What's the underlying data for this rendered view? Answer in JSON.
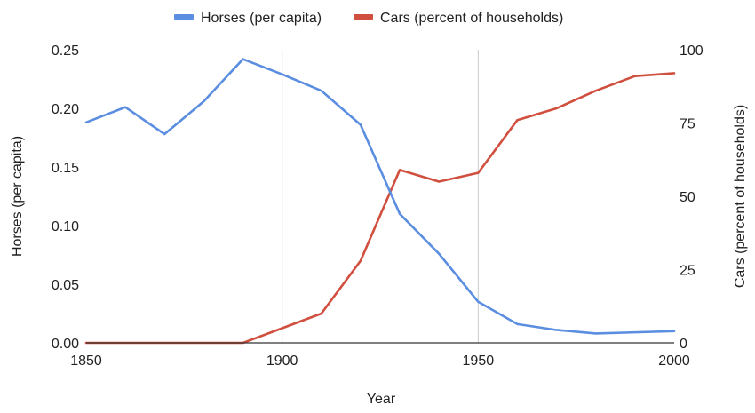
{
  "chart_data": {
    "type": "line",
    "x": [
      1850,
      1860,
      1870,
      1880,
      1890,
      1900,
      1910,
      1920,
      1930,
      1940,
      1950,
      1960,
      1970,
      1980,
      1990,
      2000
    ],
    "series": [
      {
        "name": "Horses (per capita)",
        "axis": "left",
        "color": "#5b8ee0",
        "values": [
          0.188,
          0.201,
          0.178,
          0.206,
          0.242,
          0.229,
          0.215,
          0.186,
          0.11,
          0.076,
          0.035,
          0.016,
          0.011,
          0.008,
          0.009,
          0.01
        ]
      },
      {
        "name": "Cars (percent of households)",
        "axis": "right",
        "color": "#d14f3e",
        "values": [
          0,
          0,
          0,
          0,
          0,
          5,
          10,
          28,
          59,
          55,
          58,
          76,
          80,
          86,
          91,
          92
        ]
      }
    ],
    "xlabel": "Year",
    "ylabel_left": "Horses (per capita)",
    "ylabel_right": "Cars (percent of households)",
    "xlim": [
      1850,
      2000
    ],
    "ylim_left": [
      0,
      0.25
    ],
    "ylim_right": [
      0,
      100
    ],
    "x_ticks": [
      "1850",
      "1900",
      "1950",
      "2000"
    ],
    "y_ticks_left": [
      "0.00",
      "0.05",
      "0.10",
      "0.15",
      "0.20",
      "0.25"
    ],
    "y_ticks_right": [
      "0",
      "25",
      "50",
      "75",
      "100"
    ],
    "grid": "vertical gridlines at x ticks",
    "legend": "top-center"
  }
}
